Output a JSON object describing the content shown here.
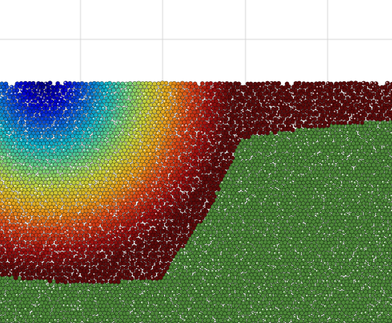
{
  "scene": {
    "description_visible_text": "",
    "colors": {
      "background": "#ffffff",
      "grid_line": "#d9d9d9",
      "substrate_particles": "#4f8a3a",
      "substrate_dark_edge": "#1e3a17",
      "colormap": [
        "#00007f",
        "#0000d0",
        "#0a5fd8",
        "#10b7c7",
        "#6ccf7d",
        "#c8d23a",
        "#e8a21c",
        "#d84317",
        "#9c0f0f",
        "#5a0a0a"
      ]
    },
    "icons": [
      "particle-material-render"
    ]
  }
}
